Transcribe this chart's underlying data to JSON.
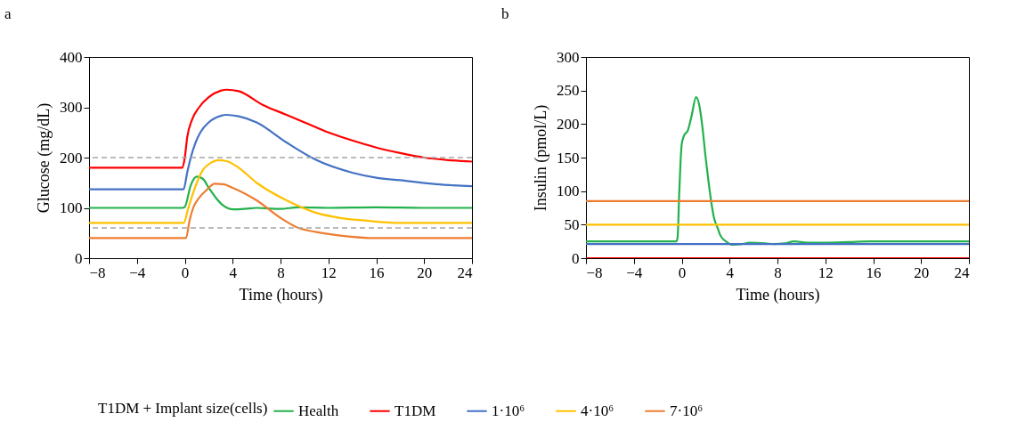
{
  "chart_data": [
    {
      "type": "line",
      "title": "a",
      "xlabel": "Time (hours)",
      "ylabel": "Glucose (mg/dL)",
      "xlim": [
        -8,
        24
      ],
      "xticks": [
        -8,
        -4,
        0,
        4,
        8,
        12,
        16,
        20,
        24
      ],
      "ylim": [
        0,
        400
      ],
      "yticks": [
        0,
        100,
        200,
        300,
        400
      ],
      "legend": "bottom",
      "legend_title": "T1DM + Implant size(cells)",
      "ref_lines": [
        {
          "axis": "y",
          "value": 200,
          "color": "#a6a6a6",
          "line_style": "dashed"
        },
        {
          "axis": "y",
          "value": 60,
          "color": "#a6a6a6",
          "line_style": "dashed"
        }
      ],
      "series": [
        {
          "name": "Health",
          "color": "#22b14c",
          "x": [
            -8,
            -0.2,
            0,
            0.5,
            1,
            1.5,
            2,
            2.6,
            3.2,
            4,
            5,
            6,
            8,
            9.5,
            12,
            16,
            20,
            24
          ],
          "values": [
            100,
            100,
            102,
            145,
            162,
            158,
            140,
            120,
            105,
            97,
            98,
            100,
            98,
            101,
            100,
            101,
            100,
            100
          ]
        },
        {
          "name": "T1DM",
          "color": "#ff0000",
          "x": [
            -8,
            -0.2,
            0,
            0.2,
            0.6,
            1.2,
            2,
            3,
            3.5,
            4.5,
            6.5,
            8.5,
            10,
            12,
            14,
            16,
            18,
            20,
            22,
            24
          ],
          "values": [
            180,
            180,
            200,
            240,
            275,
            300,
            320,
            333,
            335,
            332,
            305,
            285,
            270,
            250,
            234,
            220,
            209,
            200,
            195,
            192
          ]
        },
        {
          "name": "1·10⁶",
          "color": "#4472c4",
          "x": [
            -8,
            -0.1,
            0.2,
            0.5,
            0.9,
            1.3,
            2,
            3,
            3.5,
            4.5,
            6,
            8.5,
            11,
            14,
            16,
            18,
            21,
            24
          ],
          "values": [
            137,
            137,
            170,
            200,
            230,
            250,
            270,
            283,
            285,
            282,
            270,
            230,
            195,
            170,
            160,
            155,
            147,
            143
          ]
        },
        {
          "name": "4·10⁶",
          "color": "#ffc000",
          "x": [
            -8,
            -0.1,
            0.3,
            0.7,
            1.5,
            2.2,
            2.8,
            3.5,
            4.5,
            6,
            8.5,
            11,
            13,
            15,
            18,
            21,
            24
          ],
          "values": [
            70,
            70,
            100,
            130,
            175,
            190,
            195,
            193,
            180,
            150,
            115,
            90,
            80,
            75,
            70,
            70,
            70
          ]
        },
        {
          "name": "7·10⁶",
          "color": "#ed7d31",
          "x": [
            -8,
            0.1,
            0.4,
            0.7,
            1.2,
            1.8,
            2.5,
            3.2,
            4,
            6,
            8,
            9.5,
            11,
            13,
            16,
            20,
            24
          ],
          "values": [
            40,
            40,
            75,
            100,
            120,
            135,
            148,
            147,
            140,
            115,
            80,
            60,
            52,
            45,
            40,
            40,
            40
          ]
        }
      ]
    },
    {
      "type": "line",
      "title": "b",
      "xlabel": "Time (hours)",
      "ylabel": "Insulin (pmol/L)",
      "xlim": [
        -8,
        24
      ],
      "xticks": [
        -8,
        -4,
        0,
        4,
        8,
        12,
        16,
        20,
        24
      ],
      "ylim": [
        0,
        300
      ],
      "yticks": [
        0,
        50,
        100,
        150,
        200,
        250,
        300
      ],
      "series": [
        {
          "color": "#22b14c",
          "x": [
            -8,
            -0.45,
            -0.35,
            -0.2,
            0,
            0.2,
            0.5,
            0.8,
            1.2,
            1.5,
            1.7,
            2,
            2.2,
            2.5,
            2.7,
            3,
            3.2,
            3.7,
            4.2,
            5,
            5.7,
            7,
            7.7,
            8.6,
            9.4,
            10.5,
            12,
            14,
            15.7,
            20,
            24
          ],
          "values": [
            25,
            25,
            30,
            100,
            170,
            183,
            190,
            210,
            240,
            225,
            200,
            150,
            120,
            80,
            60,
            45,
            35,
            25,
            20,
            21,
            23,
            22,
            21,
            22,
            25,
            23,
            23,
            24,
            25,
            25,
            25
          ]
        },
        {
          "color": "#ff0000",
          "x": [
            -8,
            24
          ],
          "values": [
            0,
            0
          ]
        },
        {
          "color": "#4472c4",
          "x": [
            -8,
            24
          ],
          "values": [
            21,
            21
          ]
        },
        {
          "color": "#ffc000",
          "x": [
            -8,
            24
          ],
          "values": [
            50,
            50
          ]
        },
        {
          "color": "#ed7d31",
          "x": [
            -8,
            24
          ],
          "values": [
            85,
            85
          ]
        }
      ]
    }
  ]
}
